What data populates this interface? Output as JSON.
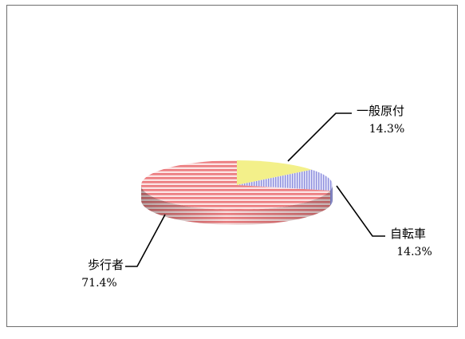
{
  "chart_data": {
    "type": "pie",
    "three_d": true,
    "categories": [
      "一般原付",
      "自転車",
      "歩行者"
    ],
    "values": [
      14.3,
      14.3,
      71.4
    ],
    "labels": [
      {
        "name": "一般原付",
        "value_text": "14.3%"
      },
      {
        "name": "自転車",
        "value_text": "14.3%"
      },
      {
        "name": "歩行者",
        "value_text": "71.4%"
      }
    ],
    "colors": [
      "#f3f08a",
      "#a9abe6",
      "#ee7f82"
    ],
    "legend": "none",
    "grid": false
  }
}
